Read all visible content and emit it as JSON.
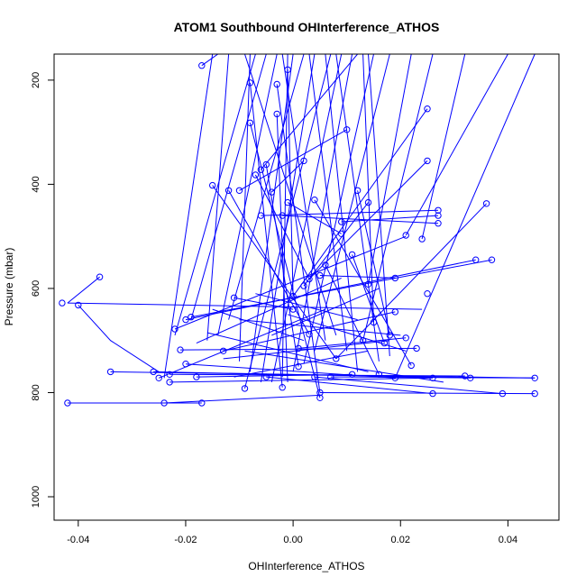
{
  "chart_data": {
    "type": "scatter",
    "title": "ATOM1 Southbound OHInterference_ATHOS",
    "xlabel": "OHInterference_ATHOS",
    "ylabel": "Pressure (mbar)",
    "xlim": [
      -0.0445,
      0.0495
    ],
    "ylim": [
      1045,
      150
    ],
    "y_reversed": true,
    "x_ticks": [
      -0.04,
      -0.02,
      0.0,
      0.02,
      0.04
    ],
    "x_tick_labels": [
      "-0.04",
      "-0.02",
      "0.00",
      "0.02",
      "0.04"
    ],
    "y_ticks": [
      200,
      400,
      600,
      800,
      1000
    ],
    "y_tick_labels": [
      "200",
      "400",
      "600",
      "800",
      "1000"
    ],
    "series_color": "#0000ff",
    "series": [
      {
        "points": [
          [
            -0.042,
            820
          ],
          [
            -0.024,
            820
          ],
          [
            -0.017,
            820
          ],
          [
            -0.036,
            578
          ],
          [
            -0.043,
            628
          ],
          [
            -0.04,
            632
          ],
          [
            -0.034,
            760
          ],
          [
            -0.026,
            760
          ],
          [
            -0.025,
            772
          ],
          [
            -0.023,
            780
          ],
          [
            -0.023,
            765
          ],
          [
            -0.022,
            678
          ],
          [
            -0.021,
            718
          ],
          [
            -0.02,
            660
          ],
          [
            -0.019,
            655
          ],
          [
            -0.02,
            745
          ],
          [
            -0.018,
            770
          ],
          [
            -0.017,
            172
          ],
          [
            -0.015,
            402
          ],
          [
            -0.013,
            720
          ],
          [
            -0.012,
            412
          ],
          [
            -0.011,
            618
          ],
          [
            -0.01,
            412
          ],
          [
            -0.009,
            792
          ],
          [
            -0.008,
            205
          ],
          [
            -0.008,
            282
          ],
          [
            -0.007,
            382
          ],
          [
            -0.006,
            372
          ],
          [
            -0.006,
            460
          ],
          [
            -0.005,
            362
          ],
          [
            -0.005,
            770
          ],
          [
            -0.004,
            415
          ],
          [
            -0.003,
            265
          ],
          [
            -0.003,
            208
          ],
          [
            -0.002,
            460
          ],
          [
            -0.002,
            790
          ],
          [
            -0.001,
            180
          ],
          [
            -0.001,
            435
          ],
          [
            0.0,
            615
          ],
          [
            0.0,
            640
          ],
          [
            0.001,
            715
          ],
          [
            0.001,
            750
          ],
          [
            0.002,
            355
          ],
          [
            0.002,
            595
          ],
          [
            0.003,
            582
          ],
          [
            0.003,
            688
          ],
          [
            0.004,
            430
          ],
          [
            0.004,
            770
          ],
          [
            0.005,
            800
          ],
          [
            0.005,
            810
          ],
          [
            0.005,
            575
          ],
          [
            0.006,
            555
          ],
          [
            0.007,
            770
          ],
          [
            0.008,
            735
          ],
          [
            0.009,
            495
          ],
          [
            0.009,
            472
          ],
          [
            0.01,
            295
          ],
          [
            0.011,
            535
          ],
          [
            0.011,
            765
          ],
          [
            0.012,
            412
          ],
          [
            0.013,
            700
          ],
          [
            0.014,
            435
          ],
          [
            0.014,
            592
          ],
          [
            0.015,
            665
          ],
          [
            0.016,
            765
          ],
          [
            0.017,
            705
          ],
          [
            0.018,
            690
          ],
          [
            0.019,
            580
          ],
          [
            0.019,
            645
          ],
          [
            0.019,
            772
          ],
          [
            0.021,
            498
          ],
          [
            0.021,
            695
          ],
          [
            0.022,
            748
          ],
          [
            0.023,
            715
          ],
          [
            0.024,
            505
          ],
          [
            0.025,
            255
          ],
          [
            0.025,
            355
          ],
          [
            0.025,
            610
          ],
          [
            0.026,
            772
          ],
          [
            0.026,
            802
          ],
          [
            0.027,
            450
          ],
          [
            0.027,
            460
          ],
          [
            0.027,
            475
          ],
          [
            0.032,
            768
          ],
          [
            0.033,
            772
          ],
          [
            0.034,
            545
          ],
          [
            0.036,
            437
          ],
          [
            0.037,
            545
          ],
          [
            0.039,
            802
          ],
          [
            0.045,
            772
          ],
          [
            0.045,
            802
          ]
        ]
      }
    ],
    "segments": [
      [
        [
          -0.042,
          820
        ],
        [
          -0.017,
          820
        ]
      ],
      [
        [
          -0.024,
          820
        ],
        [
          0.005,
          805
        ]
      ],
      [
        [
          -0.036,
          578
        ],
        [
          -0.042,
          628
        ]
      ],
      [
        [
          -0.042,
          628
        ],
        [
          0.024,
          640
        ]
      ],
      [
        [
          -0.04,
          632
        ],
        [
          -0.034,
          700
        ],
        [
          -0.025,
          760
        ]
      ],
      [
        [
          -0.034,
          760
        ],
        [
          0.045,
          772
        ]
      ],
      [
        [
          -0.026,
          760
        ],
        [
          0.033,
          772
        ]
      ],
      [
        [
          -0.025,
          772
        ],
        [
          0.006,
          640
        ]
      ],
      [
        [
          -0.023,
          780
        ],
        [
          0.026,
          772
        ]
      ],
      [
        [
          -0.023,
          765
        ],
        [
          0.032,
          768
        ]
      ],
      [
        [
          -0.022,
          678
        ],
        [
          0.021,
          500
        ]
      ],
      [
        [
          -0.02,
          660
        ],
        [
          0.034,
          545
        ]
      ],
      [
        [
          -0.019,
          655
        ],
        [
          0.037,
          545
        ]
      ],
      [
        [
          -0.021,
          718
        ],
        [
          0.023,
          715
        ]
      ],
      [
        [
          -0.02,
          745
        ],
        [
          0.019,
          772
        ]
      ],
      [
        [
          -0.018,
          770
        ],
        [
          0.011,
          765
        ]
      ],
      [
        [
          -0.017,
          172
        ],
        [
          -0.014,
          150
        ]
      ],
      [
        [
          -0.015,
          402
        ],
        [
          0.008,
          735
        ]
      ],
      [
        [
          -0.013,
          720
        ],
        [
          0.019,
          645
        ]
      ],
      [
        [
          -0.012,
          412
        ],
        [
          0.003,
          688
        ]
      ],
      [
        [
          -0.011,
          618
        ],
        [
          0.0,
          640
        ]
      ],
      [
        [
          -0.01,
          412
        ],
        [
          0.01,
          295
        ]
      ],
      [
        [
          -0.009,
          792
        ],
        [
          0.007,
          150
        ]
      ],
      [
        [
          -0.008,
          205
        ],
        [
          -0.002,
          790
        ]
      ],
      [
        [
          -0.008,
          282
        ],
        [
          0.005,
          810
        ]
      ],
      [
        [
          -0.007,
          382
        ],
        [
          0.003,
          582
        ]
      ],
      [
        [
          -0.006,
          372
        ],
        [
          0.012,
          150
        ]
      ],
      [
        [
          -0.006,
          460
        ],
        [
          0.027,
          450
        ]
      ],
      [
        [
          -0.005,
          362
        ],
        [
          0.001,
          750
        ]
      ],
      [
        [
          -0.005,
          770
        ],
        [
          0.026,
          802
        ]
      ],
      [
        [
          -0.004,
          415
        ],
        [
          0.002,
          355
        ]
      ],
      [
        [
          -0.003,
          265
        ],
        [
          -0.001,
          780
        ]
      ],
      [
        [
          -0.003,
          208
        ],
        [
          0.005,
          800
        ]
      ],
      [
        [
          -0.002,
          460
        ],
        [
          0.027,
          475
        ]
      ],
      [
        [
          -0.001,
          180
        ],
        [
          0.0,
          615
        ]
      ],
      [
        [
          -0.001,
          435
        ],
        [
          0.009,
          495
        ]
      ],
      [
        [
          0.0,
          615
        ],
        [
          0.025,
          255
        ]
      ],
      [
        [
          0.001,
          715
        ],
        [
          0.021,
          695
        ]
      ],
      [
        [
          0.002,
          595
        ],
        [
          0.014,
          435
        ]
      ],
      [
        [
          0.003,
          582
        ],
        [
          0.025,
          355
        ]
      ],
      [
        [
          0.004,
          430
        ],
        [
          0.022,
          748
        ]
      ],
      [
        [
          0.004,
          770
        ],
        [
          0.039,
          802
        ]
      ],
      [
        [
          0.005,
          800
        ],
        [
          0.045,
          802
        ]
      ],
      [
        [
          0.005,
          575
        ],
        [
          0.019,
          580
        ]
      ],
      [
        [
          0.006,
          555
        ],
        [
          0.016,
          765
        ]
      ],
      [
        [
          0.007,
          770
        ],
        [
          0.045,
          772
        ]
      ],
      [
        [
          0.008,
          735
        ],
        [
          0.036,
          437
        ]
      ],
      [
        [
          0.009,
          472
        ],
        [
          0.027,
          460
        ]
      ],
      [
        [
          0.011,
          535
        ],
        [
          0.017,
          705
        ]
      ],
      [
        [
          0.012,
          412
        ],
        [
          0.018,
          690
        ]
      ],
      [
        [
          0.013,
          700
        ],
        [
          0.026,
          150
        ]
      ],
      [
        [
          0.014,
          592
        ],
        [
          0.022,
          150
        ]
      ],
      [
        [
          0.015,
          665
        ],
        [
          0.013,
          150
        ]
      ],
      [
        [
          0.019,
          772
        ],
        [
          0.045,
          150
        ]
      ],
      [
        [
          0.021,
          498
        ],
        [
          0.04,
          150
        ]
      ],
      [
        [
          0.024,
          505
        ],
        [
          0.032,
          150
        ]
      ],
      [
        [
          -0.024,
          772
        ],
        [
          -0.015,
          150
        ]
      ],
      [
        [
          -0.022,
          690
        ],
        [
          -0.007,
          150
        ]
      ],
      [
        [
          -0.019,
          660
        ],
        [
          -0.005,
          150
        ]
      ],
      [
        [
          -0.016,
          700
        ],
        [
          -0.012,
          150
        ]
      ],
      [
        [
          -0.014,
          690
        ],
        [
          -0.003,
          150
        ]
      ],
      [
        [
          -0.012,
          660
        ],
        [
          0.002,
          150
        ]
      ],
      [
        [
          -0.01,
          740
        ],
        [
          -0.008,
          150
        ]
      ],
      [
        [
          -0.008,
          760
        ],
        [
          0.0,
          150
        ]
      ],
      [
        [
          -0.006,
          780
        ],
        [
          0.004,
          150
        ]
      ],
      [
        [
          -0.004,
          780
        ],
        [
          0.009,
          150
        ]
      ],
      [
        [
          -0.002,
          770
        ],
        [
          -0.001,
          150
        ]
      ],
      [
        [
          0.0,
          760
        ],
        [
          0.011,
          150
        ]
      ],
      [
        [
          0.002,
          745
        ],
        [
          0.015,
          150
        ]
      ],
      [
        [
          0.004,
          720
        ],
        [
          0.018,
          150
        ]
      ],
      [
        [
          0.006,
          700
        ],
        [
          -0.002,
          150
        ]
      ],
      [
        [
          0.008,
          690
        ],
        [
          -0.009,
          150
        ]
      ],
      [
        [
          0.01,
          720
        ],
        [
          0.003,
          150
        ]
      ],
      [
        [
          0.012,
          760
        ],
        [
          0.006,
          150
        ]
      ],
      [
        [
          0.016,
          740
        ],
        [
          0.008,
          150
        ]
      ],
      [
        [
          0.018,
          730
        ],
        [
          0.014,
          150
        ]
      ],
      [
        [
          -0.009,
          720
        ],
        [
          0.028,
          780
        ]
      ],
      [
        [
          -0.013,
          735
        ],
        [
          0.018,
          700
        ]
      ],
      [
        [
          -0.016,
          685
        ],
        [
          0.014,
          760
        ]
      ],
      [
        [
          -0.01,
          660
        ],
        [
          0.02,
          690
        ]
      ],
      [
        [
          -0.007,
          610
        ],
        [
          0.012,
          660
        ]
      ],
      [
        [
          -0.004,
          690
        ],
        [
          0.016,
          600
        ]
      ],
      [
        [
          -0.001,
          650
        ],
        [
          0.021,
          720
        ]
      ],
      [
        [
          0.002,
          700
        ],
        [
          -0.015,
          640
        ]
      ],
      [
        [
          -0.018,
          705
        ],
        [
          0.009,
          580
        ]
      ],
      [
        [
          -0.011,
          770
        ],
        [
          0.014,
          720
        ]
      ]
    ]
  }
}
